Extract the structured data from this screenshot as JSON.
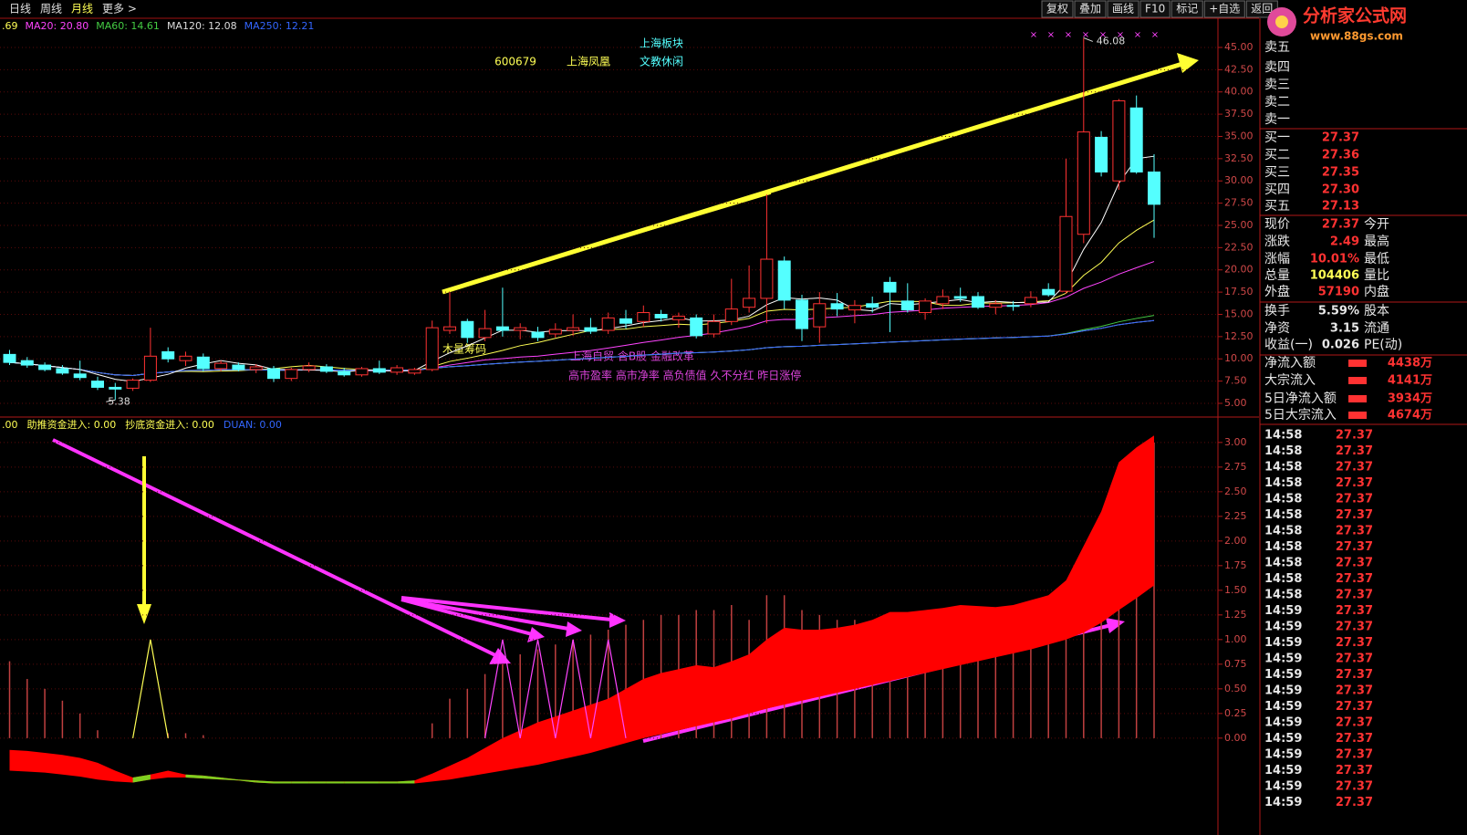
{
  "toolbar": {
    "periods": [
      "日线",
      "周线",
      "月线",
      "更多 >"
    ],
    "tools": [
      "复权",
      "叠加",
      "画线",
      "F10",
      "标记",
      "+自选",
      "返回"
    ]
  },
  "logo": {
    "name": "分析家公式网",
    "url": "www.88gs.com"
  },
  "ma_legend": [
    {
      "label": ".69",
      "color": "#ffff55"
    },
    {
      "label": "MA20: 20.80",
      "color": "#ff44ff"
    },
    {
      "label": "MA60: 14.61",
      "color": "#44cc44"
    },
    {
      "label": "MA120: 12.08",
      "color": "#dddddd"
    },
    {
      "label": "MA250: 12.21",
      "color": "#3366ff"
    }
  ],
  "stock": {
    "sector_title": "上海板块",
    "code": "600679",
    "name": "上海凤凰",
    "sector": "文教休闲"
  },
  "annotations": {
    "chip": "木量筹码",
    "concepts": "上海自贸 含B股 金融改革",
    "warnings": "高市盈率 高市净率 高负债值 久不分红 昨日涨停",
    "high_label": "46.08",
    "low_label": "5.38"
  },
  "chart_data": {
    "type": "candlestick",
    "ohlc": [
      [
        10.5,
        11,
        9.3,
        9.6
      ],
      [
        9.8,
        10.2,
        9,
        9.3
      ],
      [
        9.3,
        9.6,
        8.6,
        8.8
      ],
      [
        8.9,
        9.3,
        8.2,
        8.4
      ],
      [
        8.3,
        9.8,
        7.6,
        7.9
      ],
      [
        7.5,
        8,
        6.5,
        6.8
      ],
      [
        6.8,
        7.3,
        5.38,
        6.6
      ],
      [
        6.7,
        7.8,
        6.4,
        7.6
      ],
      [
        7.6,
        13.5,
        7.4,
        10.3
      ],
      [
        10.8,
        11.3,
        9.6,
        10
      ],
      [
        9.8,
        10.8,
        9.2,
        10.3
      ],
      [
        10.2,
        10.6,
        8.6,
        8.9
      ],
      [
        8.9,
        9.8,
        8.6,
        9.5
      ],
      [
        9.3,
        9.6,
        8.6,
        8.8
      ],
      [
        8.8,
        9.4,
        8.4,
        9.1
      ],
      [
        8.9,
        9.2,
        7.4,
        7.8
      ],
      [
        7.8,
        9,
        7.5,
        8.8
      ],
      [
        8.8,
        9.6,
        8.5,
        9.2
      ],
      [
        9.1,
        9.4,
        8.4,
        8.6
      ],
      [
        8.6,
        9,
        8,
        8.2
      ],
      [
        8.2,
        9.1,
        8,
        8.9
      ],
      [
        8.9,
        9.8,
        8.3,
        8.5
      ],
      [
        8.5,
        9.3,
        8.2,
        9
      ],
      [
        8.4,
        9,
        8.2,
        8.8
      ],
      [
        8.8,
        14.3,
        8.6,
        13.5
      ],
      [
        13.2,
        17.5,
        12.8,
        13.6
      ],
      [
        14.2,
        14.5,
        11.8,
        12.4
      ],
      [
        12.4,
        15.5,
        12,
        13.4
      ],
      [
        13.6,
        18,
        12.5,
        13.2
      ],
      [
        13.2,
        14,
        12.2,
        13.5
      ],
      [
        13,
        13.6,
        12,
        12.4
      ],
      [
        12.8,
        14,
        12.4,
        13.3
      ],
      [
        13.2,
        15,
        12.6,
        13.5
      ],
      [
        13.5,
        14.6,
        12.8,
        13.1
      ],
      [
        13.2,
        15.2,
        12.8,
        14.6
      ],
      [
        14.5,
        15.5,
        13.4,
        14
      ],
      [
        14.2,
        16,
        13.6,
        15.2
      ],
      [
        15,
        15.5,
        14.2,
        14.6
      ],
      [
        14.4,
        15.2,
        13.5,
        14.8
      ],
      [
        14.6,
        15,
        12.3,
        12.6
      ],
      [
        12.8,
        15,
        12.4,
        14.2
      ],
      [
        14.2,
        19,
        13.8,
        15.6
      ],
      [
        15.8,
        20.5,
        15.2,
        16.8
      ],
      [
        16.8,
        28.5,
        14,
        21.2
      ],
      [
        21,
        21.5,
        15.6,
        16.6
      ],
      [
        16.6,
        17.2,
        12,
        13.4
      ],
      [
        13.6,
        17.5,
        11.8,
        16.2
      ],
      [
        16.2,
        17.4,
        14.8,
        15.6
      ],
      [
        15.5,
        16.6,
        14,
        16
      ],
      [
        16.2,
        17,
        15.2,
        15.8
      ],
      [
        18.6,
        19.2,
        13,
        17.5
      ],
      [
        16.5,
        18.5,
        15.2,
        15.5
      ],
      [
        15.2,
        16.8,
        14.4,
        16.5
      ],
      [
        16.2,
        17.8,
        15.6,
        17
      ],
      [
        17,
        18,
        16.4,
        16.8
      ],
      [
        17,
        17.5,
        15.6,
        15.8
      ],
      [
        15.8,
        16.6,
        15,
        16.2
      ],
      [
        16,
        16.5,
        15.4,
        15.9
      ],
      [
        16.2,
        17.6,
        15.8,
        16.9
      ],
      [
        17.8,
        18.5,
        17,
        17.2
      ],
      [
        17.6,
        32.5,
        17.3,
        26
      ],
      [
        24,
        46.08,
        23,
        35.5
      ],
      [
        34.9,
        35.6,
        30.5,
        31
      ],
      [
        30,
        39.2,
        29,
        39
      ],
      [
        38.2,
        39.6,
        30.8,
        31
      ],
      [
        31,
        33,
        23.6,
        27.37
      ]
    ],
    "up_color": "#ff3232",
    "down_color": "#54ffff",
    "ylim": [
      3.46,
      48.28
    ],
    "yticks": [
      {
        "value": 5,
        "label": "5.00"
      },
      {
        "value": 7.5,
        "label": "7.50"
      },
      {
        "value": 10,
        "label": "10.00"
      },
      {
        "value": 12.5,
        "label": "12.50"
      },
      {
        "value": 15,
        "label": "15.00"
      },
      {
        "value": 17.5,
        "label": "17.50"
      },
      {
        "value": 20,
        "label": "20.00"
      },
      {
        "value": 22.5,
        "label": "22.50"
      },
      {
        "value": 25,
        "label": "25.00"
      },
      {
        "value": 27.5,
        "label": "27.50"
      },
      {
        "value": 30,
        "label": "30.00"
      },
      {
        "value": 32.5,
        "label": "32.50"
      },
      {
        "value": 35,
        "label": "35.00"
      },
      {
        "value": 37.5,
        "label": "37.50"
      },
      {
        "value": 40,
        "label": "40.00"
      },
      {
        "value": 42.5,
        "label": "42.50"
      },
      {
        "value": 45,
        "label": "45.00"
      }
    ],
    "grid": true
  },
  "indicator": {
    "legend": [
      ".00",
      "助推资金进入: 0.00",
      "抄底资金进入: 0.00",
      "DUAN: 0.00"
    ],
    "ylim": [
      -0.77,
      3.23
    ],
    "yticks": [
      {
        "value": 0,
        "label": "0.00"
      },
      {
        "value": 0.25,
        "label": "0.25"
      },
      {
        "value": 0.5,
        "label": "0.50"
      },
      {
        "value": 0.75,
        "label": "0.75"
      },
      {
        "value": 1,
        "label": "1.00"
      },
      {
        "value": 1.25,
        "label": "1.25"
      },
      {
        "value": 1.5,
        "label": "1.50"
      },
      {
        "value": 1.75,
        "label": "1.75"
      },
      {
        "value": 2,
        "label": "2.00"
      },
      {
        "value": 2.25,
        "label": "2.25"
      },
      {
        "value": 2.5,
        "label": "2.50"
      },
      {
        "value": 2.75,
        "label": "2.75"
      },
      {
        "value": 3,
        "label": "3.00"
      }
    ],
    "upper": [
      -0.12,
      -0.13,
      -0.15,
      -0.17,
      -0.2,
      -0.25,
      -0.33,
      -0.4,
      -0.37,
      -0.33,
      -0.37,
      -0.38,
      -0.4,
      -0.42,
      -0.43,
      -0.44,
      -0.44,
      -0.44,
      -0.44,
      -0.44,
      -0.44,
      -0.44,
      -0.44,
      -0.43,
      -0.36,
      -0.28,
      -0.2,
      -0.1,
      0,
      0.08,
      0.16,
      0.22,
      0.28,
      0.34,
      0.4,
      0.5,
      0.6,
      0.66,
      0.7,
      0.74,
      0.72,
      0.78,
      0.85,
      1,
      1.12,
      1.1,
      1.1,
      1.12,
      1.15,
      1.2,
      1.28,
      1.28,
      1.3,
      1.32,
      1.35,
      1.34,
      1.33,
      1.35,
      1.4,
      1.45,
      1.6,
      1.95,
      2.3,
      2.8,
      2.95,
      3.07
    ],
    "lower": [
      -0.33,
      -0.34,
      -0.35,
      -0.37,
      -0.39,
      -0.42,
      -0.44,
      -0.45,
      -0.42,
      -0.4,
      -0.4,
      -0.41,
      -0.42,
      -0.43,
      -0.45,
      -0.46,
      -0.46,
      -0.46,
      -0.46,
      -0.46,
      -0.46,
      -0.46,
      -0.46,
      -0.46,
      -0.44,
      -0.42,
      -0.39,
      -0.36,
      -0.33,
      -0.3,
      -0.27,
      -0.23,
      -0.19,
      -0.15,
      -0.1,
      -0.05,
      0,
      0.04,
      0.08,
      0.12,
      0.16,
      0.2,
      0.25,
      0.3,
      0.34,
      0.38,
      0.42,
      0.46,
      0.5,
      0.54,
      0.58,
      0.62,
      0.66,
      0.7,
      0.74,
      0.78,
      0.82,
      0.86,
      0.9,
      0.95,
      1,
      1.07,
      1.17,
      1.3,
      1.42,
      1.55
    ],
    "bars": [
      0.78,
      0.6,
      0.5,
      0.38,
      0.25,
      0.08,
      0,
      0,
      0,
      0.05,
      0.05,
      0.03,
      0,
      0,
      0,
      0,
      0,
      0,
      0,
      0,
      0,
      0,
      0,
      0,
      0.15,
      0.4,
      0.5,
      0.65,
      0.75,
      0.85,
      0.9,
      0.95,
      1,
      1.05,
      1.1,
      1.15,
      1.2,
      1.25,
      1.25,
      1.3,
      1.3,
      1.35,
      1.2,
      1.45,
      1.45,
      1.3,
      1.25,
      1.2,
      1.2,
      1.15,
      1.2,
      1.2,
      1.1,
      1.1,
      1.1,
      1.05,
      1,
      1,
      1,
      0.95,
      1,
      1.1,
      1.2,
      1.35,
      1.5,
      3
    ],
    "spike": [
      null,
      null,
      null,
      null,
      null,
      null,
      null,
      0,
      1,
      0,
      null,
      null,
      null,
      null,
      null,
      null,
      null,
      null,
      null,
      null,
      null,
      null,
      null,
      null,
      null,
      null,
      null,
      null,
      null,
      null,
      null,
      null,
      null,
      null,
      null,
      null,
      null,
      null,
      null,
      null,
      null,
      null,
      null,
      null,
      null,
      null,
      null,
      null,
      null,
      null,
      null,
      null,
      null,
      null,
      null,
      null,
      null,
      null,
      null,
      null,
      null,
      null,
      null,
      null,
      null,
      null
    ],
    "signal": [
      null,
      null,
      null,
      null,
      null,
      null,
      null,
      null,
      null,
      null,
      null,
      null,
      null,
      null,
      null,
      null,
      null,
      null,
      null,
      null,
      null,
      null,
      null,
      null,
      null,
      null,
      null,
      0,
      1,
      0,
      1,
      0,
      1,
      0,
      1,
      0,
      null,
      null,
      null,
      null,
      null,
      null,
      null,
      null,
      null,
      null,
      null,
      null,
      null,
      null,
      null,
      null,
      null,
      null,
      null,
      null,
      null,
      null,
      null,
      null,
      null,
      null,
      null,
      null,
      null,
      null
    ]
  },
  "quote": {
    "book": [
      {
        "label": "卖五",
        "price": null
      },
      {
        "label": "卖四",
        "price": null
      },
      {
        "label": "卖三",
        "price": null
      },
      {
        "label": "卖二",
        "price": null
      },
      {
        "label": "卖一",
        "price": null
      },
      {
        "label": "买一",
        "price": "27.37"
      },
      {
        "label": "买二",
        "price": "27.36"
      },
      {
        "label": "买三",
        "price": "27.35"
      },
      {
        "label": "买四",
        "price": "27.30"
      },
      {
        "label": "买五",
        "price": "27.13"
      }
    ],
    "stats": [
      {
        "label": "现价",
        "value": "27.37",
        "label2": "今开"
      },
      {
        "label": "涨跌",
        "value": "2.49",
        "label2": "最高"
      },
      {
        "label": "涨幅",
        "value": "10.01%",
        "label2": "最低"
      },
      {
        "label": "总量",
        "value": "104406",
        "label2": "量比"
      },
      {
        "label": "外盘",
        "value": "57190",
        "label2": "内盘"
      },
      {
        "label": "换手",
        "value": "5.59%",
        "label2": "股本"
      },
      {
        "label": "净资",
        "value": "3.15",
        "label2": "流通"
      },
      {
        "label": "收益(一)",
        "value": "0.026",
        "label2": "PE(动)"
      }
    ],
    "flows": [
      {
        "label": "净流入额",
        "value": "4438万"
      },
      {
        "label": "大宗流入",
        "value": "4141万"
      },
      {
        "label": "5日净流入额",
        "value": "3934万"
      },
      {
        "label": "5日大宗流入",
        "value": "4674万"
      }
    ]
  },
  "trades": {
    "times": [
      "14:58",
      "14:58",
      "14:58",
      "14:58",
      "14:58",
      "14:58",
      "14:58",
      "14:58",
      "14:58",
      "14:58",
      "14:58",
      "14:59",
      "14:59",
      "14:59",
      "14:59",
      "14:59",
      "14:59",
      "14:59",
      "14:59",
      "14:59",
      "14:59",
      "14:59",
      "14:59",
      "14:59"
    ],
    "prices": [
      "27.37",
      "27.37",
      "27.37",
      "27.37",
      "27.37",
      "27.37",
      "27.37",
      "27.37",
      "27.37",
      "27.37",
      "27.37",
      "27.37",
      "27.37",
      "27.37",
      "27.37",
      "27.37",
      "27.37",
      "27.37",
      "27.37",
      "27.37",
      "27.37",
      "27.37",
      "27.37",
      "27.37"
    ]
  }
}
